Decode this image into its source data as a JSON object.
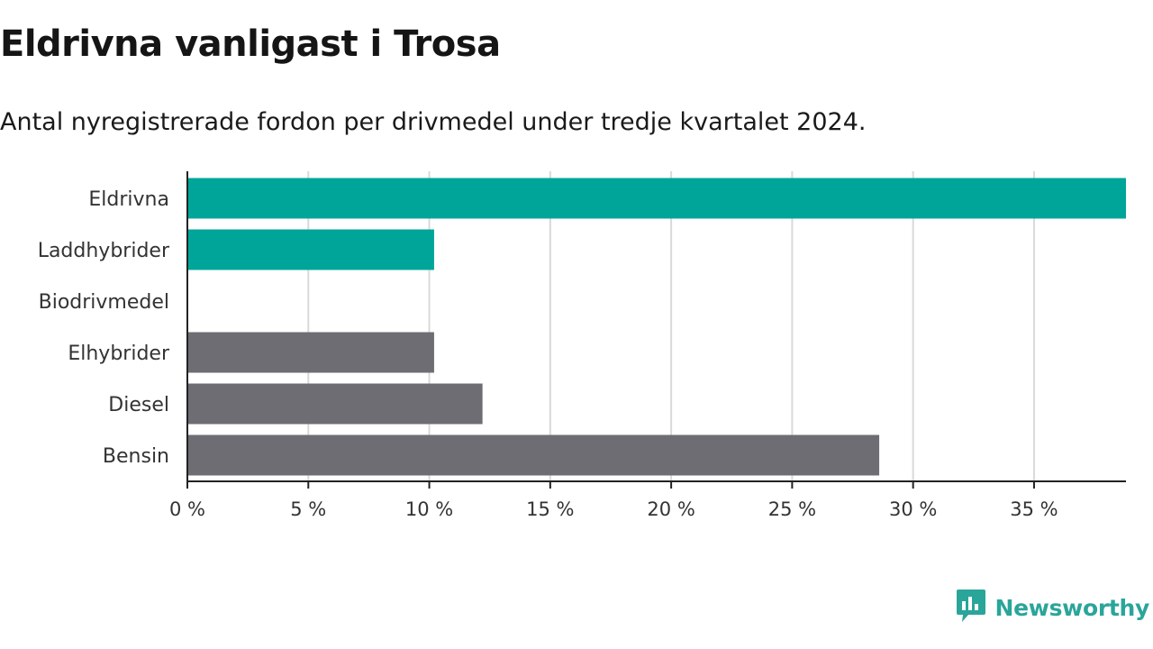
{
  "header": {
    "title": "Eldrivna vanligast i Trosa",
    "subtitle": "Antal nyregistrerade fordon per drivmedel under tredje kvartalet 2024."
  },
  "brand": {
    "name": "Newsworthy",
    "color": "#2aa59a",
    "icon": "bar-chart-speech-bubble-icon"
  },
  "chart_data": {
    "type": "bar",
    "orientation": "horizontal",
    "title": "Eldrivna vanligast i Trosa",
    "subtitle": "Antal nyregistrerade fordon per drivmedel under tredje kvartalet 2024.",
    "xlabel": "",
    "ylabel": "",
    "categories": [
      "Eldrivna",
      "Laddhybrider",
      "Biodrivmedel",
      "Elhybrider",
      "Diesel",
      "Bensin"
    ],
    "values": [
      38.8,
      10.2,
      0,
      10.2,
      12.2,
      28.6
    ],
    "colors": [
      "#00a59a",
      "#00a59a",
      "#00a59a",
      "#6e6d73",
      "#6e6d73",
      "#6e6d73"
    ],
    "xlim": [
      0,
      38.8
    ],
    "xticks": [
      0,
      5,
      10,
      15,
      20,
      25,
      30,
      35
    ],
    "xtick_labels": [
      "0 %",
      "5 %",
      "10 %",
      "15 %",
      "20 %",
      "25 %",
      "30 %",
      "35 %"
    ],
    "grid": true,
    "legend": "none"
  }
}
